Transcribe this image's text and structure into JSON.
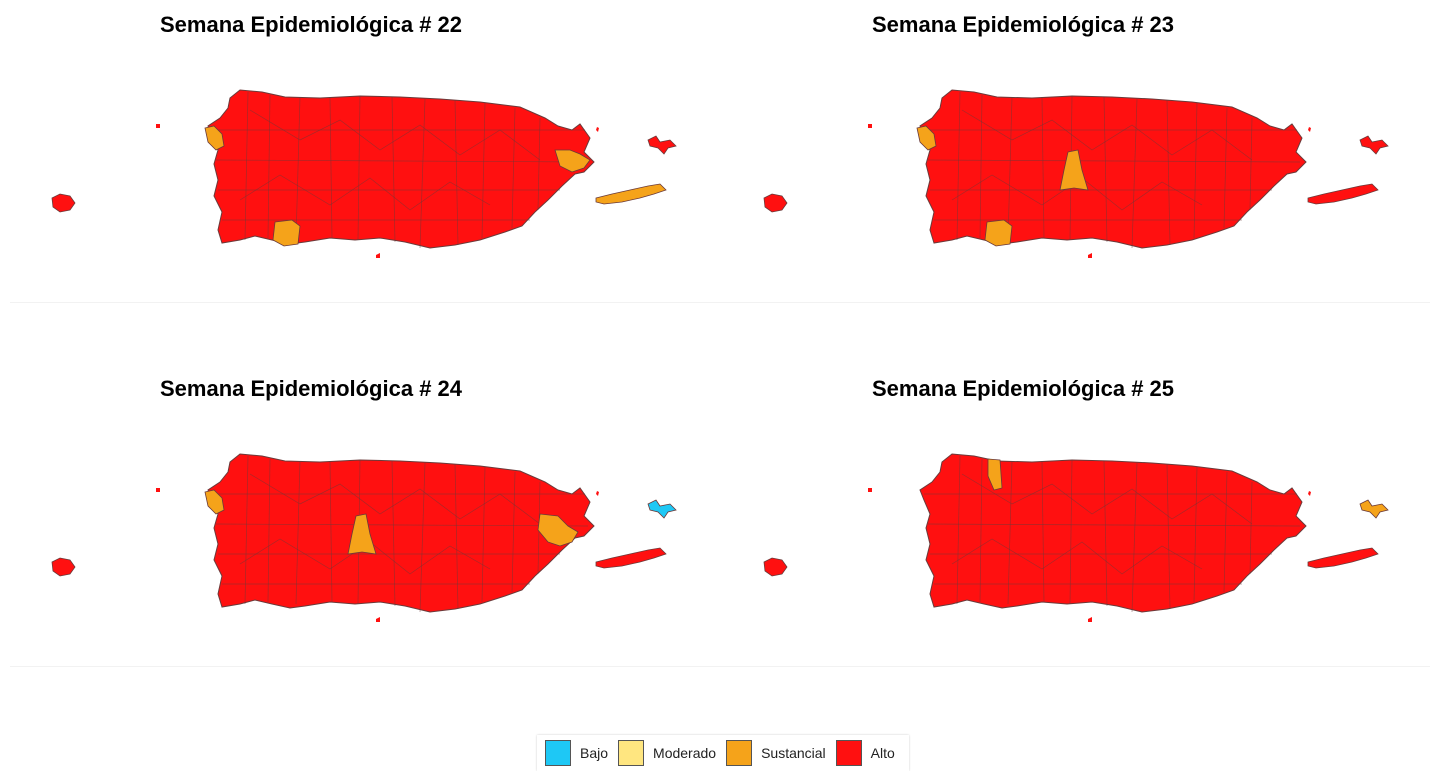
{
  "colors": {
    "bajo": "#1ec8f5",
    "moderado": "#ffe680",
    "sustancial": "#f5a31a",
    "alto": "#ff1010",
    "borders": "#6b3a3a"
  },
  "panels": [
    {
      "title": "Semana Epidemiológica # 22",
      "highlights": {
        "aguadilla": "sustancial",
        "ceiba": "sustancial",
        "vieques": "sustancial",
        "lajas": "sustancial",
        "culebra": "alto"
      }
    },
    {
      "title": "Semana Epidemiológica # 23",
      "highlights": {
        "aguadilla": "sustancial",
        "jayuya": "sustancial",
        "lajas": "sustancial",
        "vieques": "alto",
        "culebra": "alto"
      }
    },
    {
      "title": "Semana Epidemiológica # 24",
      "highlights": {
        "aguadilla": "sustancial",
        "jayuya": "sustancial",
        "humacao": "sustancial",
        "culebra": "bajo",
        "vieques": "alto"
      }
    },
    {
      "title": "Semana Epidemiológica # 25",
      "highlights": {
        "hatillo": "sustancial",
        "culebra": "sustancial",
        "vieques": "alto"
      }
    }
  ],
  "legend": [
    {
      "key": "bajo",
      "label": "Bajo"
    },
    {
      "key": "moderado",
      "label": "Moderado"
    },
    {
      "key": "sustancial",
      "label": "Sustancial"
    },
    {
      "key": "alto",
      "label": "Alto"
    }
  ]
}
